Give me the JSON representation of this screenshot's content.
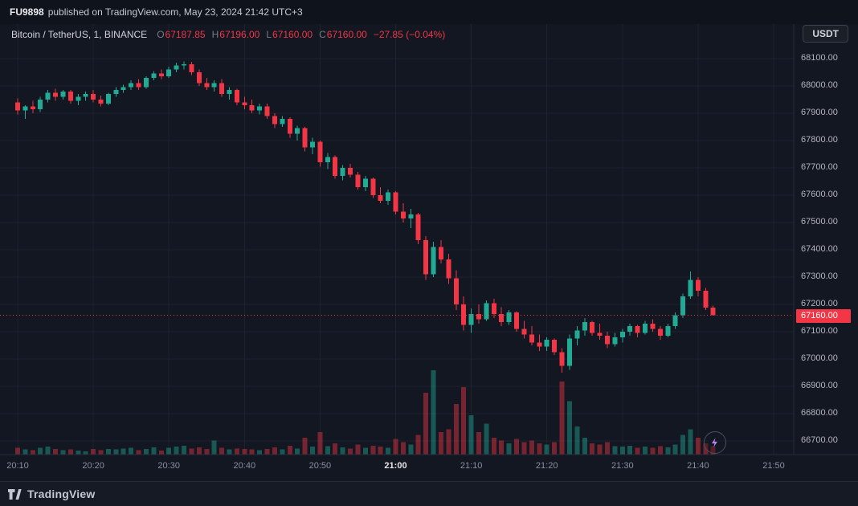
{
  "top_bar": {
    "username": "FU9898",
    "published_text": "published on TradingView.com, May 23, 2024 21:42 UTC+3"
  },
  "header": {
    "symbol": "Bitcoin / TetherUS, 1, BINANCE",
    "ohlc": {
      "open_label": "O",
      "open": "67187.85",
      "high_label": "H",
      "high": "67196.00",
      "low_label": "L",
      "low": "67160.00",
      "close_label": "C",
      "close": "67160.00",
      "change": "−27.85 (−0.04%)"
    },
    "currency_button": "USDT"
  },
  "price_axis": {
    "ticks": [
      "68100.00",
      "68000.00",
      "67900.00",
      "67800.00",
      "67700.00",
      "67600.00",
      "67500.00",
      "67400.00",
      "67300.00",
      "67200.00",
      "67100.00",
      "67000.00",
      "66900.00",
      "66800.00",
      "66700.00"
    ],
    "last_price_label": "67160.00"
  },
  "time_axis": {
    "ticks": [
      {
        "i": 0,
        "label": "20:10",
        "emphasis": false
      },
      {
        "i": 10,
        "label": "20:20",
        "emphasis": false
      },
      {
        "i": 20,
        "label": "20:30",
        "emphasis": false
      },
      {
        "i": 30,
        "label": "20:40",
        "emphasis": false
      },
      {
        "i": 40,
        "label": "20:50",
        "emphasis": false
      },
      {
        "i": 50,
        "label": "21:00",
        "emphasis": true
      },
      {
        "i": 60,
        "label": "21:10",
        "emphasis": false
      },
      {
        "i": 70,
        "label": "21:20",
        "emphasis": false
      },
      {
        "i": 80,
        "label": "21:30",
        "emphasis": false
      },
      {
        "i": 90,
        "label": "21:40",
        "emphasis": false
      },
      {
        "i": 100,
        "label": "21:50",
        "emphasis": false
      }
    ]
  },
  "footer": {
    "brand": "TradingView"
  },
  "chart_data": {
    "type": "candlestick",
    "title": "Bitcoin / TetherUS, 1, BINANCE",
    "interval": "1 minute",
    "last_price": 67160,
    "y_axis": {
      "min": 66650,
      "max": 68200,
      "tick_step": 100
    },
    "x_axis": {
      "start": "20:10",
      "end": "21:50",
      "label_step_min": 10
    },
    "colors": {
      "up": "#22ab94",
      "down": "#f23645",
      "volume_up": "#22ab9473",
      "volume_down": "#f2364573",
      "grid": "#1c2230",
      "last_price_line": "#f23645",
      "background": "#131722",
      "accent_purple": "#b983f5"
    },
    "columns": [
      "time",
      "open",
      "high",
      "low",
      "close",
      "volume"
    ],
    "candles": [
      [
        "20:10",
        67940,
        67955,
        67895,
        67910,
        12
      ],
      [
        "20:11",
        67910,
        67930,
        67880,
        67925,
        9
      ],
      [
        "20:12",
        67925,
        67945,
        67900,
        67915,
        8
      ],
      [
        "20:13",
        67915,
        67960,
        67905,
        67950,
        12
      ],
      [
        "20:14",
        67950,
        67985,
        67940,
        67975,
        14
      ],
      [
        "20:15",
        67975,
        67990,
        67945,
        67960,
        10
      ],
      [
        "20:16",
        67960,
        67985,
        67950,
        67980,
        8
      ],
      [
        "20:17",
        67980,
        67985,
        67935,
        67945,
        9
      ],
      [
        "20:18",
        67945,
        67970,
        67930,
        67960,
        7
      ],
      [
        "20:19",
        67960,
        67980,
        67945,
        67970,
        6
      ],
      [
        "20:20",
        67970,
        67985,
        67940,
        67950,
        10
      ],
      [
        "20:21",
        67950,
        67965,
        67925,
        67935,
        8
      ],
      [
        "20:22",
        67935,
        67975,
        67930,
        67970,
        10
      ],
      [
        "20:23",
        67970,
        67995,
        67960,
        67985,
        9
      ],
      [
        "20:24",
        67985,
        68005,
        67975,
        67995,
        11
      ],
      [
        "20:25",
        67995,
        68020,
        67985,
        68010,
        12
      ],
      [
        "20:26",
        68010,
        68025,
        67985,
        67995,
        8
      ],
      [
        "20:27",
        67995,
        68035,
        67990,
        68030,
        10
      ],
      [
        "20:28",
        68030,
        68055,
        68020,
        68045,
        13
      ],
      [
        "20:29",
        68045,
        68060,
        68025,
        68035,
        7
      ],
      [
        "20:30",
        68035,
        68070,
        68030,
        68060,
        12
      ],
      [
        "20:31",
        68060,
        68085,
        68050,
        68075,
        14
      ],
      [
        "20:32",
        68075,
        68090,
        68060,
        68080,
        16
      ],
      [
        "20:33",
        68080,
        68088,
        68040,
        68050,
        11
      ],
      [
        "20:34",
        68050,
        68060,
        68000,
        68010,
        13
      ],
      [
        "20:35",
        68010,
        68030,
        67985,
        67995,
        10
      ],
      [
        "20:36",
        67995,
        68020,
        67980,
        68010,
        25
      ],
      [
        "20:37",
        68010,
        68025,
        67960,
        67970,
        12
      ],
      [
        "20:38",
        67970,
        67995,
        67950,
        67985,
        9
      ],
      [
        "20:39",
        67985,
        67990,
        67930,
        67940,
        11
      ],
      [
        "20:40",
        67940,
        67960,
        67915,
        67930,
        10
      ],
      [
        "20:41",
        67930,
        67950,
        67900,
        67910,
        9
      ],
      [
        "20:42",
        67910,
        67935,
        67895,
        67925,
        8
      ],
      [
        "20:43",
        67925,
        67935,
        67880,
        67890,
        10
      ],
      [
        "20:44",
        67890,
        67900,
        67845,
        67860,
        13
      ],
      [
        "20:45",
        67860,
        67890,
        67850,
        67880,
        9
      ],
      [
        "20:46",
        67880,
        67885,
        67810,
        67825,
        16
      ],
      [
        "20:47",
        67825,
        67855,
        67800,
        67845,
        11
      ],
      [
        "20:48",
        67845,
        67850,
        67760,
        67775,
        30
      ],
      [
        "20:49",
        67775,
        67810,
        67750,
        67795,
        14
      ],
      [
        "20:50",
        67795,
        67800,
        67705,
        67720,
        40
      ],
      [
        "20:51",
        67720,
        67755,
        67695,
        67740,
        15
      ],
      [
        "20:52",
        67740,
        67745,
        67660,
        67670,
        20
      ],
      [
        "20:53",
        67670,
        67710,
        67655,
        67700,
        13
      ],
      [
        "20:54",
        67700,
        67715,
        67665,
        67675,
        11
      ],
      [
        "20:55",
        67675,
        67685,
        67620,
        67630,
        18
      ],
      [
        "20:56",
        67630,
        67670,
        67615,
        67660,
        12
      ],
      [
        "20:57",
        67660,
        67665,
        67590,
        67600,
        16
      ],
      [
        "20:58",
        67600,
        67630,
        67570,
        67580,
        14
      ],
      [
        "20:59",
        67580,
        67620,
        67565,
        67610,
        12
      ],
      [
        "21:00",
        67610,
        67615,
        67530,
        67540,
        28
      ],
      [
        "21:01",
        67540,
        67570,
        67500,
        67515,
        22
      ],
      [
        "21:02",
        67515,
        67550,
        67480,
        67530,
        18
      ],
      [
        "21:03",
        67530,
        67535,
        67420,
        67435,
        35
      ],
      [
        "21:04",
        67435,
        67450,
        67290,
        67310,
        110
      ],
      [
        "21:05",
        67310,
        67430,
        67300,
        67410,
        150
      ],
      [
        "21:06",
        67410,
        67435,
        67350,
        67365,
        40
      ],
      [
        "21:07",
        67365,
        67385,
        67275,
        67295,
        45
      ],
      [
        "21:08",
        67295,
        67325,
        67180,
        67200,
        90
      ],
      [
        "21:09",
        67200,
        67230,
        67105,
        67125,
        120
      ],
      [
        "21:10",
        67125,
        67185,
        67095,
        67165,
        70
      ],
      [
        "21:11",
        67165,
        67200,
        67130,
        67145,
        40
      ],
      [
        "21:12",
        67145,
        67215,
        67140,
        67205,
        55
      ],
      [
        "21:13",
        67205,
        67220,
        67150,
        67165,
        30
      ],
      [
        "21:14",
        67165,
        67190,
        67120,
        67135,
        25
      ],
      [
        "21:15",
        67135,
        67180,
        67125,
        67170,
        20
      ],
      [
        "21:16",
        67170,
        67175,
        67100,
        67110,
        28
      ],
      [
        "21:17",
        67110,
        67140,
        67075,
        67090,
        22
      ],
      [
        "21:18",
        67090,
        67120,
        67050,
        67060,
        25
      ],
      [
        "21:19",
        67060,
        67090,
        67030,
        67045,
        20
      ],
      [
        "21:20",
        67045,
        67080,
        67030,
        67070,
        18
      ],
      [
        "21:21",
        67070,
        67075,
        67015,
        67025,
        22
      ],
      [
        "21:22",
        67025,
        67040,
        66950,
        66975,
        130
      ],
      [
        "21:23",
        66975,
        67090,
        66960,
        67075,
        95
      ],
      [
        "21:24",
        67075,
        67120,
        67050,
        67105,
        50
      ],
      [
        "21:25",
        67105,
        67150,
        67085,
        67135,
        30
      ],
      [
        "21:26",
        67135,
        67140,
        67085,
        67095,
        20
      ],
      [
        "21:27",
        67095,
        67130,
        67070,
        67085,
        18
      ],
      [
        "21:28",
        67085,
        67100,
        67040,
        67055,
        22
      ],
      [
        "21:29",
        67055,
        67095,
        67045,
        67080,
        15
      ],
      [
        "21:30",
        67080,
        67110,
        67060,
        67100,
        14
      ],
      [
        "21:31",
        67100,
        67130,
        67085,
        67120,
        16
      ],
      [
        "21:32",
        67120,
        67125,
        67080,
        67095,
        12
      ],
      [
        "21:33",
        67095,
        67140,
        67090,
        67130,
        14
      ],
      [
        "21:34",
        67130,
        67145,
        67100,
        67110,
        12
      ],
      [
        "21:35",
        67110,
        67120,
        67070,
        67085,
        15
      ],
      [
        "21:36",
        67085,
        67130,
        67080,
        67120,
        13
      ],
      [
        "21:37",
        67120,
        67170,
        67110,
        67160,
        18
      ],
      [
        "21:38",
        67160,
        67240,
        67150,
        67230,
        35
      ],
      [
        "21:39",
        67230,
        67320,
        67220,
        67290,
        45
      ],
      [
        "21:40",
        67290,
        67300,
        67230,
        67250,
        30
      ],
      [
        "21:41",
        67250,
        67260,
        67180,
        67188,
        20
      ],
      [
        "21:42",
        67187.85,
        67196,
        67160,
        67160,
        15
      ]
    ]
  }
}
